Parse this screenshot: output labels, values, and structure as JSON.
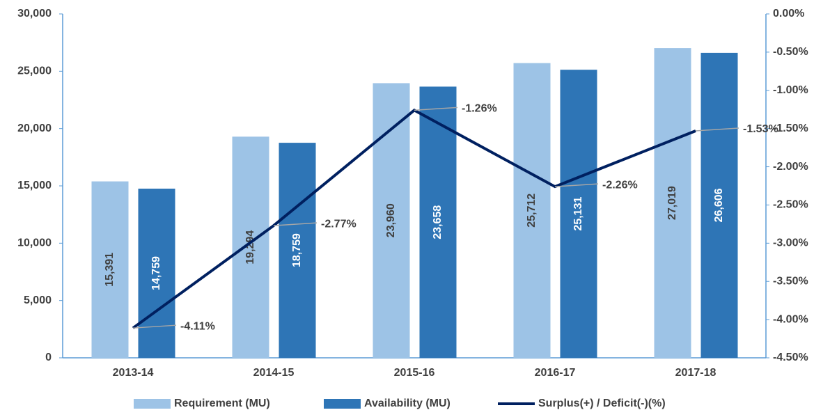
{
  "chart_data": {
    "type": "bar",
    "categories": [
      "2013-14",
      "2014-15",
      "2015-16",
      "2016-17",
      "2017-18"
    ],
    "series": [
      {
        "name": "Requirement (MU)",
        "color": "#9dc3e6",
        "values": [
          15391,
          19294,
          23960,
          25712,
          27019
        ],
        "value_labels": [
          "15,391",
          "19,294",
          "23,960",
          "25,712",
          "27,019"
        ]
      },
      {
        "name": "Availability (MU)",
        "color": "#2e75b6",
        "values": [
          14759,
          18759,
          23658,
          25131,
          26606
        ],
        "value_labels": [
          "14,759",
          "18,759",
          "23,658",
          "25,131",
          "26,606"
        ]
      },
      {
        "name": "Surplus(+) / Deficit(-)(%)",
        "color": "#002060",
        "type": "line",
        "axis": "y2",
        "values": [
          -4.11,
          -2.77,
          -1.26,
          -2.26,
          -1.53
        ],
        "value_labels": [
          "-4.11%",
          "-2.77%",
          "-1.26%",
          "-2.26%",
          "-1.53%"
        ]
      }
    ],
    "ylim": [
      0,
      30000
    ],
    "yticks": [
      0,
      {
        "value": 5000,
        "label": "5,000"
      },
      {
        "value": 10000,
        "label": "10,000"
      },
      {
        "value": 15000,
        "label": "15,000"
      },
      {
        "value": 20000,
        "label": "20,000"
      },
      {
        "value": 25000,
        "label": "25,000"
      },
      {
        "value": 30000,
        "label": "30,000"
      }
    ],
    "y2lim": [
      -4.5,
      0
    ],
    "y2ticks": [
      {
        "value": 0,
        "label": "0.00%"
      },
      {
        "value": -0.5,
        "label": "-0.50%"
      },
      {
        "value": -1,
        "label": "-1.00%"
      },
      {
        "value": -1.5,
        "label": "-1.50%"
      },
      {
        "value": -2,
        "label": "-2.00%"
      },
      {
        "value": -2.5,
        "label": "-2.50%"
      },
      {
        "value": -3,
        "label": "-3.00%"
      },
      {
        "value": -3.5,
        "label": "-3.50%"
      },
      {
        "value": -4,
        "label": "-4.00%"
      },
      {
        "value": -4.5,
        "label": "-4.50%"
      }
    ],
    "legend": "bottom"
  }
}
